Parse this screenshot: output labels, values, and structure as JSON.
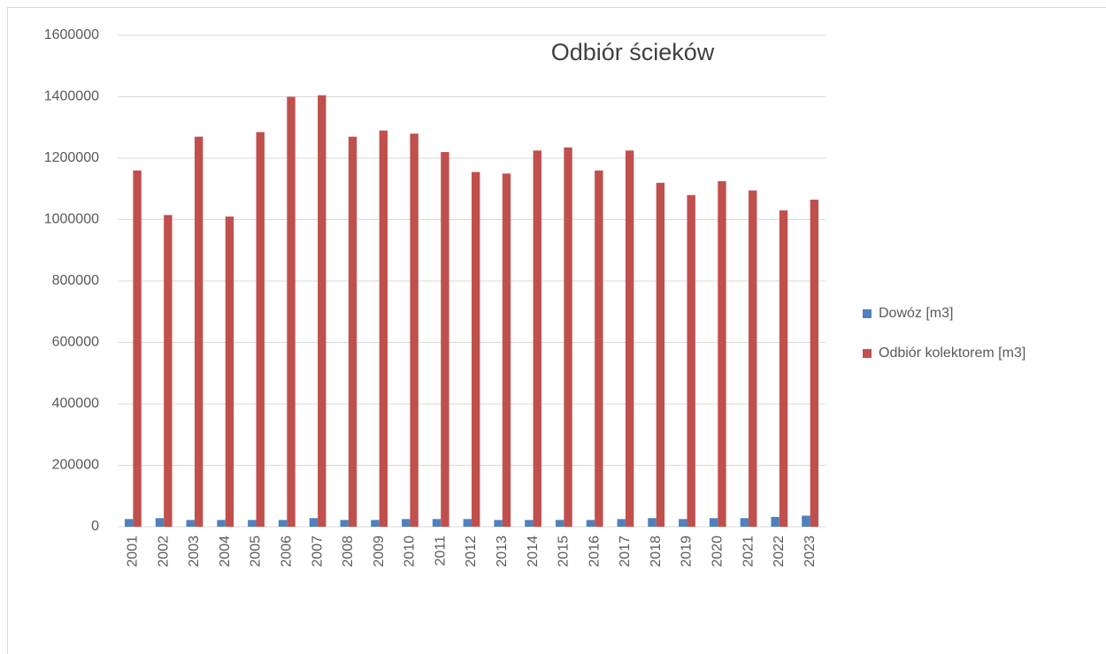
{
  "chart_data": {
    "type": "bar",
    "title": "Odbiór ścieków",
    "categories": [
      "2001",
      "2002",
      "2003",
      "2004",
      "2005",
      "2006",
      "2007",
      "2008",
      "2009",
      "2010",
      "2011",
      "2012",
      "2013",
      "2014",
      "2015",
      "2016",
      "2017",
      "2018",
      "2019",
      "2020",
      "2021",
      "2022",
      "2023"
    ],
    "series": [
      {
        "name": "Dowóz [m3]",
        "color": "#4f81bd",
        "values": [
          25000,
          28000,
          22000,
          22000,
          22000,
          22000,
          28000,
          22000,
          22000,
          25000,
          25000,
          25000,
          22000,
          22000,
          22000,
          22000,
          25000,
          28000,
          25000,
          28000,
          28000,
          32000,
          36000
        ]
      },
      {
        "name": "Odbiór kolektorem [m3]",
        "color": "#c0504d",
        "values": [
          1160000,
          1015000,
          1270000,
          1010000,
          1285000,
          1400000,
          1405000,
          1270000,
          1290000,
          1280000,
          1220000,
          1155000,
          1150000,
          1225000,
          1235000,
          1160000,
          1225000,
          1120000,
          1080000,
          1125000,
          1095000,
          1030000,
          1065000
        ]
      }
    ],
    "ylim": [
      0,
      1600000
    ],
    "yticks": [
      0,
      200000,
      400000,
      600000,
      800000,
      1000000,
      1200000,
      1400000,
      1600000
    ],
    "grid": true,
    "legend": "right"
  }
}
